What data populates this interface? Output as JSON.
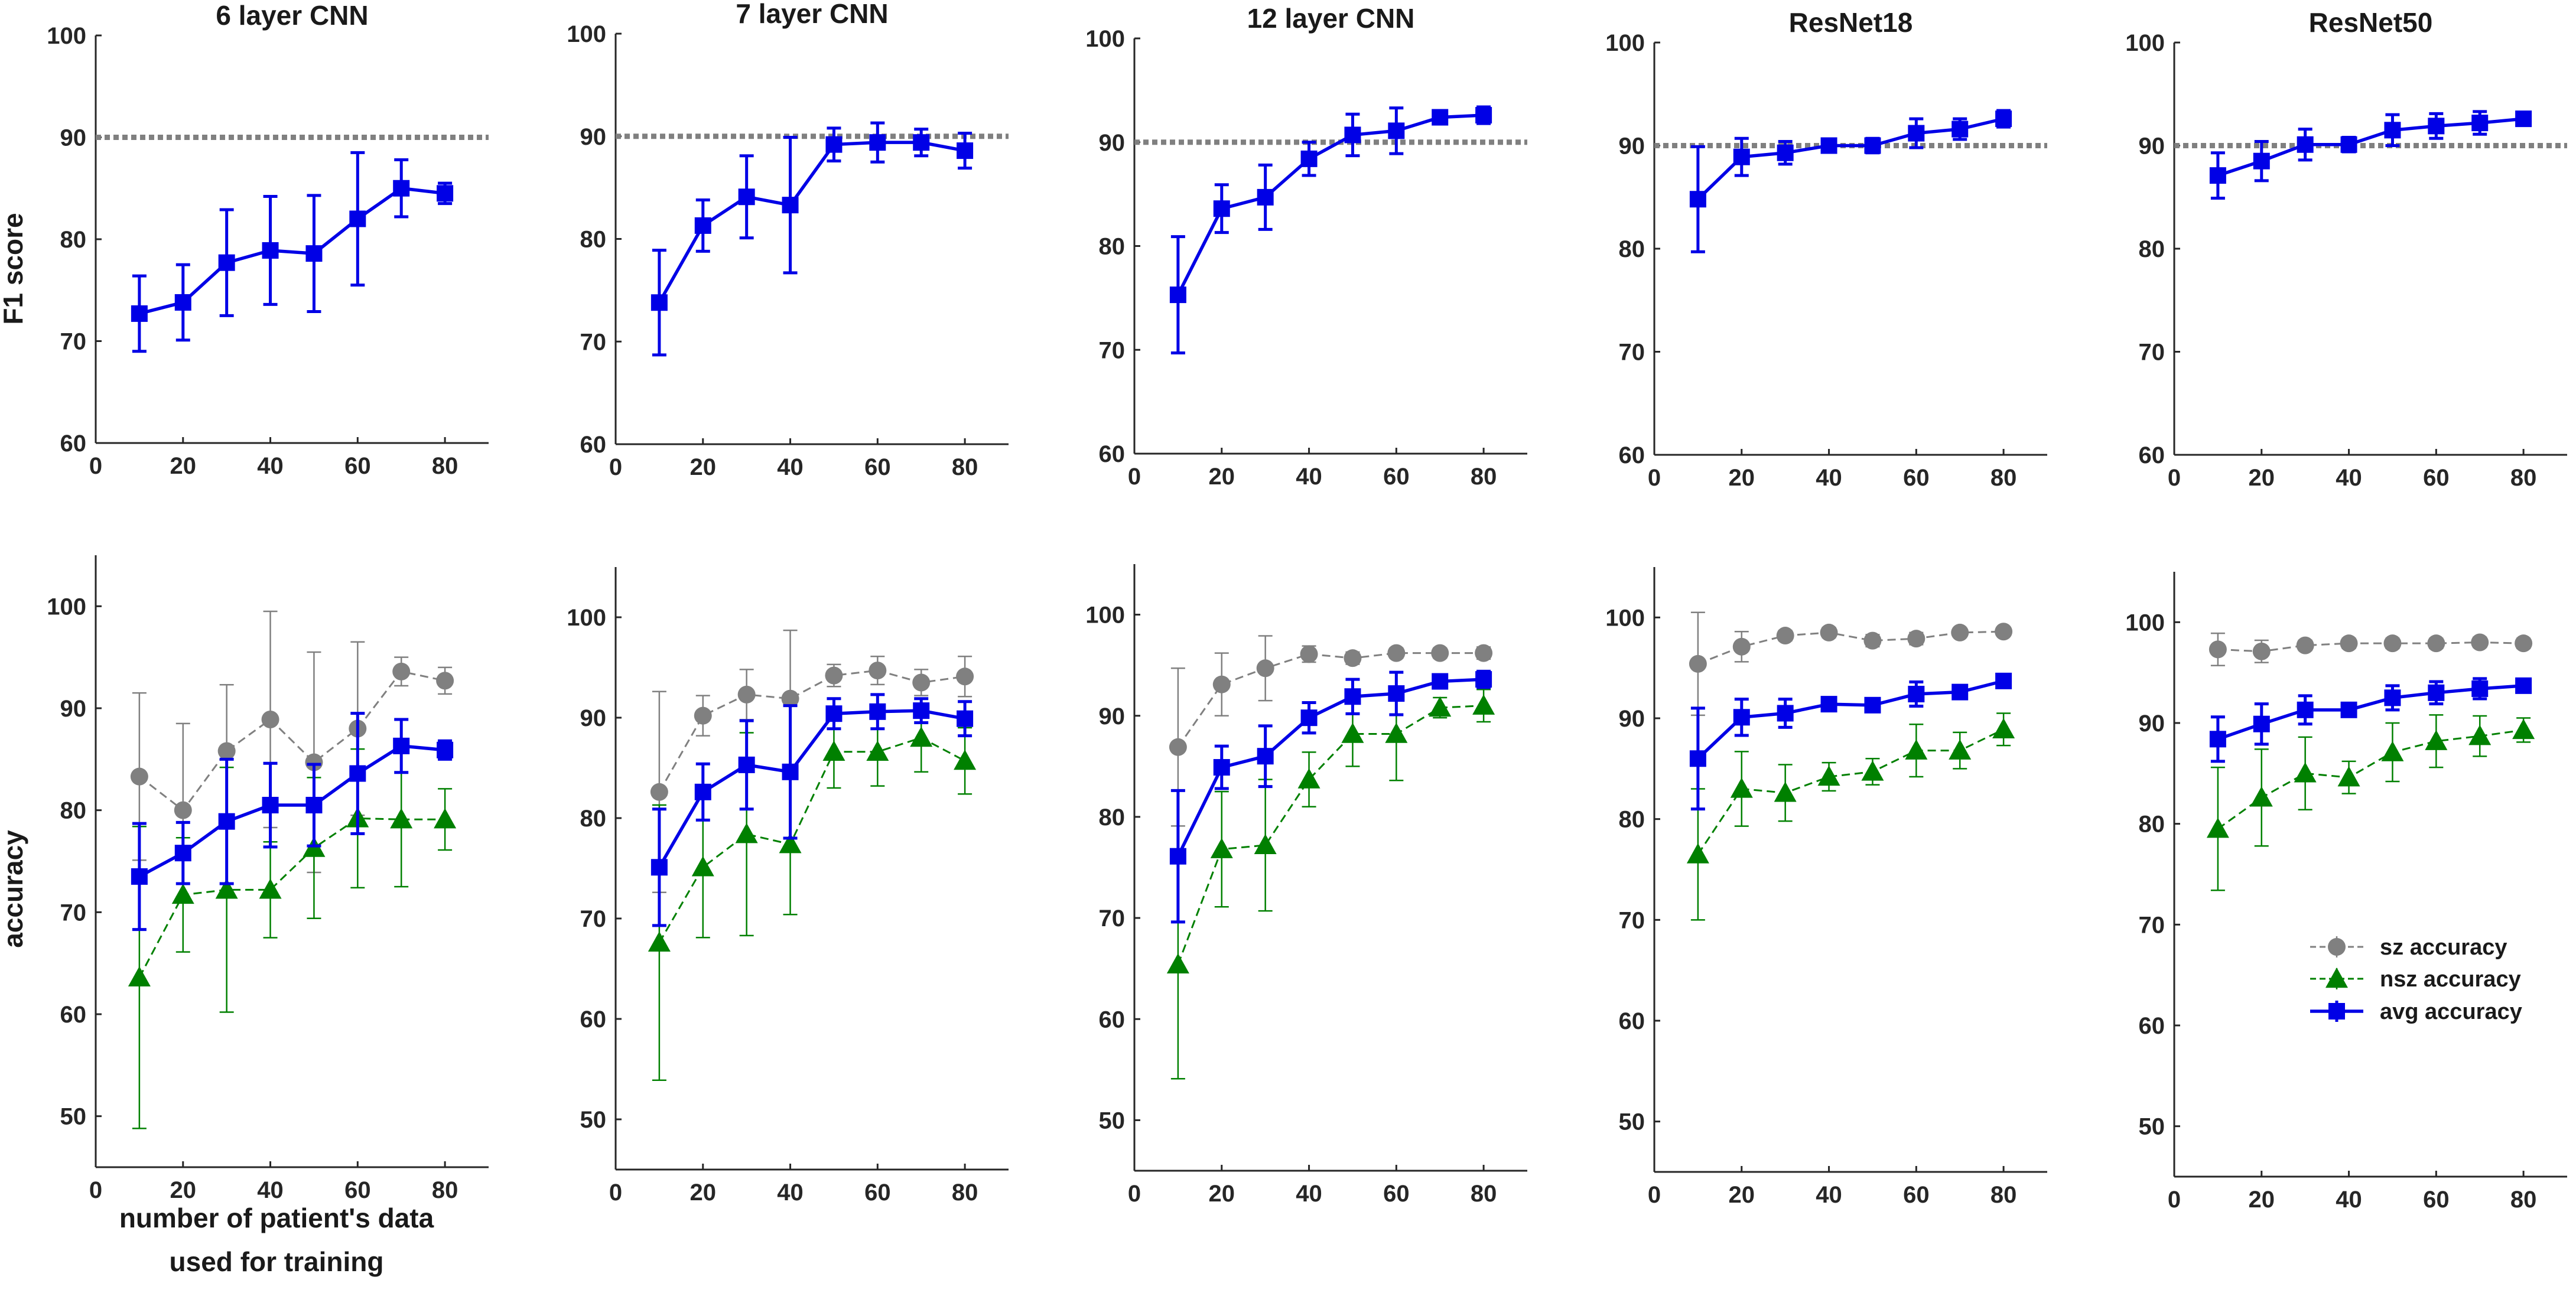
{
  "figure": {
    "f1_ylabel": "F1 score",
    "acc_ylabel": "accuracy",
    "xlabel_lines": [
      "number of patient's data",
      "used for training"
    ]
  },
  "colors": {
    "sz": "#808080",
    "nsz": "#008000",
    "avg": "#0000e6",
    "threshold": "#808080",
    "axis": "#262626"
  },
  "legend": {
    "sz": "sz accuracy",
    "nsz": "nsz accuracy",
    "avg": "avg accuracy"
  },
  "chart_data": [
    {
      "type": "line",
      "row": "f1",
      "title": "6 layer CNN",
      "xlim": [
        0,
        90
      ],
      "ylim": [
        60,
        100
      ],
      "xticks": [
        0,
        20,
        40,
        60,
        80
      ],
      "yticks": [
        60,
        70,
        80,
        90,
        100
      ],
      "threshold": 90,
      "x": [
        10,
        20,
        30,
        40,
        50,
        60,
        70,
        80
      ],
      "series": [
        {
          "key": "avg",
          "marker": "square",
          "dashed": false,
          "values": [
            72.7,
            73.8,
            77.7,
            78.9,
            78.6,
            82.0,
            85.0,
            84.5
          ],
          "err": [
            3.7,
            3.7,
            5.2,
            5.3,
            5.7,
            6.5,
            2.8,
            1.0
          ]
        }
      ]
    },
    {
      "type": "line",
      "row": "f1",
      "title": "7 layer CNN",
      "xlim": [
        0,
        90
      ],
      "ylim": [
        60,
        100
      ],
      "xticks": [
        0,
        20,
        40,
        60,
        80
      ],
      "yticks": [
        60,
        70,
        80,
        90,
        100
      ],
      "threshold": 90,
      "x": [
        10,
        20,
        30,
        40,
        50,
        60,
        70,
        80
      ],
      "series": [
        {
          "key": "avg",
          "marker": "square",
          "dashed": false,
          "values": [
            73.8,
            81.3,
            84.1,
            83.3,
            89.2,
            89.4,
            89.4,
            88.6
          ],
          "err": [
            5.1,
            2.5,
            4.0,
            6.6,
            1.6,
            1.9,
            1.3,
            1.7
          ]
        }
      ]
    },
    {
      "type": "line",
      "row": "f1",
      "title": "12 layer CNN",
      "xlim": [
        0,
        90
      ],
      "ylim": [
        60,
        100
      ],
      "xticks": [
        0,
        20,
        40,
        60,
        80
      ],
      "yticks": [
        60,
        70,
        80,
        90,
        100
      ],
      "threshold": 90,
      "x": [
        10,
        20,
        30,
        40,
        50,
        60,
        70,
        80
      ],
      "series": [
        {
          "key": "avg",
          "marker": "square",
          "dashed": false,
          "values": [
            75.3,
            83.6,
            84.7,
            88.4,
            90.7,
            91.1,
            92.4,
            92.6
          ],
          "err": [
            5.6,
            2.3,
            3.1,
            1.6,
            2.0,
            2.2,
            0.4,
            0.8
          ]
        }
      ]
    },
    {
      "type": "line",
      "row": "f1",
      "title": "ResNet18",
      "xlim": [
        0,
        90
      ],
      "ylim": [
        60,
        100
      ],
      "xticks": [
        0,
        20,
        40,
        60,
        80
      ],
      "yticks": [
        60,
        70,
        80,
        90,
        100
      ],
      "threshold": 90,
      "x": [
        10,
        20,
        30,
        40,
        50,
        60,
        70,
        80
      ],
      "series": [
        {
          "key": "avg",
          "marker": "square",
          "dashed": false,
          "values": [
            84.8,
            88.9,
            89.3,
            90.0,
            90.0,
            91.2,
            91.6,
            92.6
          ],
          "err": [
            5.1,
            1.8,
            1.1,
            0.6,
            0.7,
            1.4,
            1.0,
            0.8
          ]
        }
      ]
    },
    {
      "type": "line",
      "row": "f1",
      "title": "ResNet50",
      "xlim": [
        0,
        90
      ],
      "ylim": [
        60,
        100
      ],
      "xticks": [
        0,
        20,
        40,
        60,
        80
      ],
      "yticks": [
        60,
        70,
        80,
        90,
        100
      ],
      "threshold": 90,
      "x": [
        10,
        20,
        30,
        40,
        50,
        60,
        70,
        80
      ],
      "series": [
        {
          "key": "avg",
          "marker": "square",
          "dashed": false,
          "values": [
            87.1,
            88.5,
            90.1,
            90.1,
            91.5,
            91.9,
            92.2,
            92.6
          ],
          "err": [
            2.2,
            1.9,
            1.5,
            0.7,
            1.5,
            1.2,
            1.1,
            0.6
          ]
        }
      ]
    },
    {
      "type": "line",
      "row": "acc",
      "title": "",
      "xlim": [
        0,
        90
      ],
      "ylim": [
        45,
        105
      ],
      "xticks": [
        0,
        20,
        40,
        60,
        80
      ],
      "yticks": [
        50,
        60,
        70,
        80,
        90,
        100
      ],
      "x": [
        10,
        20,
        30,
        40,
        50,
        60,
        70,
        80
      ],
      "series": [
        {
          "key": "sz",
          "marker": "circle",
          "dashed": true,
          "values": [
            83.3,
            80.0,
            85.8,
            88.9,
            84.7,
            88.0,
            93.6,
            92.7
          ],
          "err": [
            8.2,
            8.5,
            6.5,
            10.6,
            10.8,
            8.5,
            1.4,
            1.3
          ]
        },
        {
          "key": "nsz",
          "marker": "triangle",
          "dashed": true,
          "values": [
            63.6,
            71.7,
            72.2,
            72.2,
            76.3,
            79.2,
            79.1,
            79.1
          ],
          "err": [
            14.8,
            5.6,
            12.0,
            4.7,
            6.9,
            6.8,
            6.6,
            3.0
          ]
        },
        {
          "key": "avg",
          "marker": "square",
          "dashed": false,
          "values": [
            73.5,
            75.8,
            78.9,
            80.5,
            80.5,
            83.6,
            86.3,
            85.9
          ],
          "err": [
            5.2,
            3.0,
            6.1,
            4.1,
            4.0,
            5.9,
            2.6,
            0.9
          ]
        }
      ]
    },
    {
      "type": "line",
      "row": "acc",
      "title": "",
      "xlim": [
        0,
        90
      ],
      "ylim": [
        45,
        105
      ],
      "xticks": [
        0,
        20,
        40,
        60,
        80
      ],
      "yticks": [
        50,
        60,
        70,
        80,
        90,
        100
      ],
      "x": [
        10,
        20,
        30,
        40,
        50,
        60,
        70,
        80
      ],
      "series": [
        {
          "key": "sz",
          "marker": "circle",
          "dashed": true,
          "values": [
            82.6,
            90.2,
            92.3,
            91.9,
            94.2,
            94.7,
            93.5,
            94.1
          ],
          "err": [
            10.0,
            2.0,
            2.5,
            6.8,
            1.1,
            1.4,
            1.3,
            2.0
          ]
        },
        {
          "key": "nsz",
          "marker": "triangle",
          "dashed": true,
          "values": [
            67.6,
            75.1,
            78.4,
            77.4,
            86.6,
            86.6,
            88.0,
            85.7
          ],
          "err": [
            13.7,
            7.0,
            10.1,
            7.0,
            3.6,
            3.4,
            3.4,
            3.3
          ]
        },
        {
          "key": "avg",
          "marker": "square",
          "dashed": false,
          "values": [
            75.1,
            82.6,
            85.3,
            84.6,
            90.4,
            90.6,
            90.7,
            89.9
          ],
          "err": [
            5.8,
            2.8,
            4.4,
            6.6,
            1.5,
            1.7,
            1.2,
            1.7
          ]
        }
      ]
    },
    {
      "type": "line",
      "row": "acc",
      "title": "",
      "xlim": [
        0,
        90
      ],
      "ylim": [
        45,
        105
      ],
      "xticks": [
        0,
        20,
        40,
        60,
        80
      ],
      "yticks": [
        50,
        60,
        70,
        80,
        90,
        100
      ],
      "x": [
        10,
        20,
        30,
        40,
        50,
        60,
        70,
        80
      ],
      "series": [
        {
          "key": "sz",
          "marker": "circle",
          "dashed": true,
          "values": [
            86.9,
            93.1,
            94.7,
            96.1,
            95.7,
            96.2,
            96.2,
            96.2
          ],
          "err": [
            7.8,
            3.1,
            3.2,
            0.8,
            0.6,
            0.5,
            0.5,
            0.6
          ]
        },
        {
          "key": "nsz",
          "marker": "triangle",
          "dashed": true,
          "values": [
            65.4,
            76.8,
            77.2,
            83.7,
            88.2,
            88.2,
            90.8,
            91.0
          ],
          "err": [
            11.3,
            5.7,
            6.5,
            2.7,
            3.2,
            4.6,
            1.0,
            1.6
          ]
        },
        {
          "key": "avg",
          "marker": "square",
          "dashed": false,
          "values": [
            76.1,
            84.9,
            86.0,
            89.8,
            91.9,
            92.2,
            93.4,
            93.6
          ],
          "err": [
            6.5,
            2.1,
            3.0,
            1.5,
            1.7,
            2.1,
            0.5,
            0.8
          ]
        }
      ]
    },
    {
      "type": "line",
      "row": "acc",
      "title": "",
      "xlim": [
        0,
        90
      ],
      "ylim": [
        45,
        105
      ],
      "xticks": [
        0,
        20,
        40,
        60,
        80
      ],
      "yticks": [
        50,
        60,
        70,
        80,
        90,
        100
      ],
      "x": [
        10,
        20,
        30,
        40,
        50,
        60,
        70,
        80
      ],
      "series": [
        {
          "key": "sz",
          "marker": "circle",
          "dashed": true,
          "values": [
            95.4,
            97.1,
            98.2,
            98.5,
            97.7,
            97.9,
            98.5,
            98.6
          ],
          "err": [
            5.1,
            1.5,
            0.5,
            0.5,
            0.6,
            0.6,
            0.4,
            0.4
          ]
        },
        {
          "key": "nsz",
          "marker": "triangle",
          "dashed": true,
          "values": [
            76.5,
            83.0,
            82.6,
            84.2,
            84.7,
            86.8,
            86.8,
            88.9
          ],
          "err": [
            6.5,
            3.7,
            2.8,
            1.4,
            1.3,
            2.6,
            1.8,
            1.6
          ]
        },
        {
          "key": "avg",
          "marker": "square",
          "dashed": false,
          "values": [
            86.0,
            90.1,
            90.5,
            91.4,
            91.3,
            92.4,
            92.6,
            93.7
          ],
          "err": [
            5.0,
            1.8,
            1.4,
            0.4,
            0.5,
            1.2,
            0.6,
            0.6
          ]
        }
      ]
    },
    {
      "type": "line",
      "row": "acc",
      "title": "",
      "xlim": [
        0,
        90
      ],
      "ylim": [
        45,
        105
      ],
      "xticks": [
        0,
        20,
        40,
        60,
        80
      ],
      "yticks": [
        50,
        60,
        70,
        80,
        90,
        100
      ],
      "x": [
        10,
        20,
        30,
        40,
        50,
        60,
        70,
        80
      ],
      "legend": true,
      "series": [
        {
          "key": "sz",
          "marker": "circle",
          "dashed": true,
          "values": [
            97.3,
            97.1,
            97.7,
            97.9,
            97.9,
            97.9,
            98.0,
            97.9
          ],
          "err": [
            1.6,
            1.1,
            0.5,
            0.5,
            0.5,
            0.5,
            0.5,
            0.5
          ]
        },
        {
          "key": "nsz",
          "marker": "triangle",
          "dashed": true,
          "values": [
            79.5,
            82.6,
            85.0,
            84.6,
            87.1,
            88.2,
            88.7,
            89.3
          ],
          "err": [
            6.1,
            4.8,
            3.6,
            1.6,
            2.9,
            2.6,
            2.0,
            1.2
          ]
        },
        {
          "key": "avg",
          "marker": "square",
          "dashed": false,
          "values": [
            88.4,
            89.9,
            91.3,
            91.3,
            92.5,
            93.0,
            93.4,
            93.7
          ],
          "err": [
            2.2,
            2.0,
            1.4,
            0.6,
            1.2,
            1.1,
            1.0,
            0.6
          ]
        }
      ]
    }
  ]
}
